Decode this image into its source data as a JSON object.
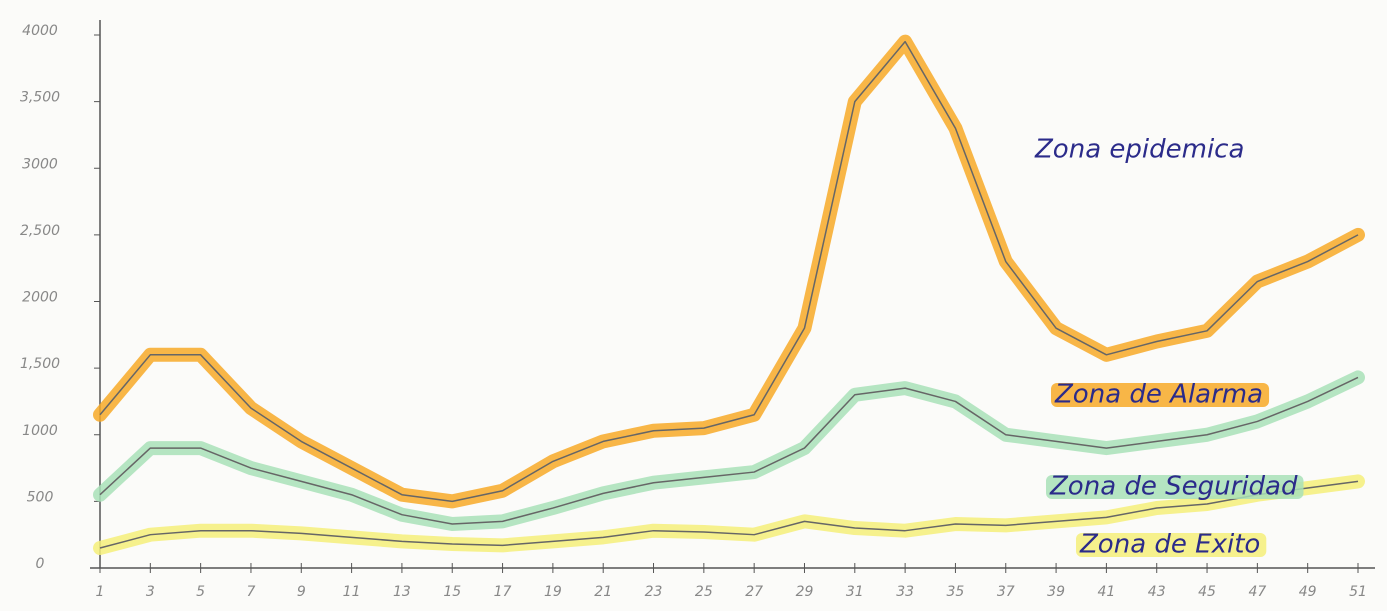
{
  "chart_data": {
    "type": "line",
    "annotations": [
      "Zona epidemica"
    ],
    "x": [
      1,
      3,
      5,
      7,
      9,
      11,
      13,
      15,
      17,
      19,
      21,
      23,
      25,
      27,
      29,
      31,
      33,
      35,
      37,
      39,
      41,
      43,
      45,
      47,
      49,
      51
    ],
    "series": [
      {
        "name": "Zona de Alarma",
        "color": "#f7a928",
        "values": [
          1150,
          1600,
          1600,
          1200,
          950,
          750,
          550,
          500,
          580,
          800,
          950,
          1030,
          1050,
          1150,
          1800,
          3500,
          3950,
          3300,
          2300,
          1800,
          1600,
          1700,
          1780,
          2150,
          2300,
          2500
        ]
      },
      {
        "name": "Zona de Seguridad",
        "color": "#a8e0b8",
        "values": [
          550,
          900,
          900,
          750,
          650,
          550,
          400,
          330,
          350,
          450,
          560,
          640,
          680,
          720,
          900,
          1300,
          1350,
          1250,
          1000,
          950,
          900,
          950,
          1000,
          1100,
          1250,
          1430
        ]
      },
      {
        "name": "Zona de Exito",
        "color": "#f4ef7a",
        "values": [
          150,
          250,
          280,
          280,
          260,
          230,
          200,
          180,
          170,
          200,
          230,
          280,
          270,
          250,
          350,
          300,
          280,
          330,
          320,
          350,
          380,
          450,
          480,
          550,
          600,
          650
        ]
      }
    ],
    "xlim": [
      1,
      51
    ],
    "xticks": [
      1,
      3,
      5,
      7,
      9,
      11,
      13,
      15,
      17,
      19,
      21,
      23,
      25,
      27,
      29,
      31,
      33,
      35,
      37,
      39,
      41,
      43,
      45,
      47,
      49,
      51
    ],
    "ylim": [
      0,
      4000
    ],
    "yticks": [
      0,
      500,
      1000,
      {
        "value": 1500,
        "label": "1,500"
      },
      2000,
      {
        "value": 2500,
        "label": "2,500"
      },
      3000,
      {
        "value": 3500,
        "label": "3,500"
      },
      4000
    ]
  }
}
